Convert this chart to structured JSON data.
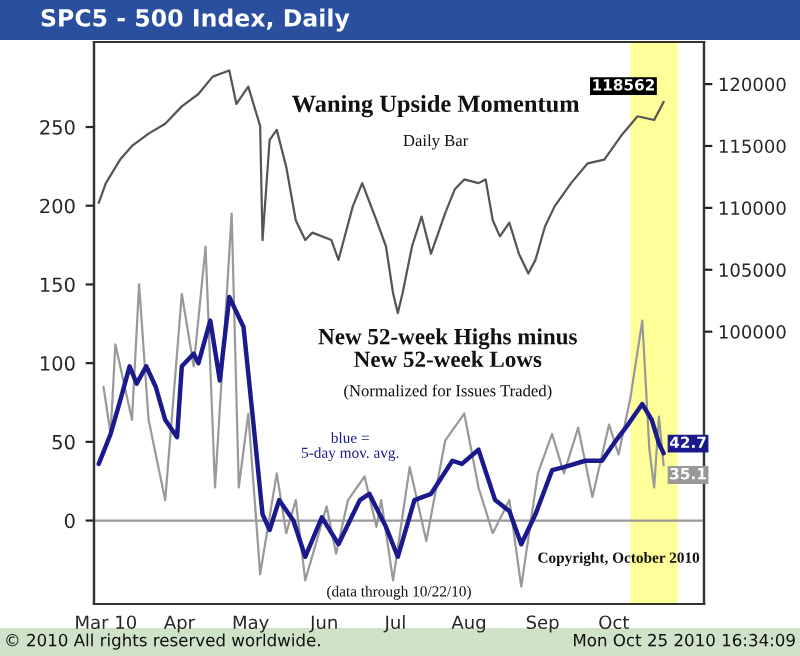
{
  "chart_data": {
    "type": "line",
    "title": "SPC5 - 500 Index, Daily",
    "annotations": [
      "Waning Upside Momentum",
      "Daily Bar",
      "New 52-week Highs minus\nNew 52-week Lows",
      "(Normalized for Issues Traded)",
      "blue =\n5-day mov. avg.",
      "(data through 10/22/10)",
      "Copyright, October 2010",
      "© 2010 All rights reserved worldwide.",
      "Mon Oct 25 2010 16:34:09"
    ],
    "series": [
      {
        "axis": "y2",
        "color": "#555555",
        "x": [
          "2010-02-26",
          "2010-03-01",
          "2010-03-07",
          "2010-03-12",
          "2010-03-19",
          "2010-03-26",
          "2010-04-02",
          "2010-04-09",
          "2010-04-15",
          "2010-04-22",
          "2010-04-25",
          "2010-04-30",
          "2010-05-05",
          "2010-05-06",
          "2010-05-09",
          "2010-05-12",
          "2010-05-16",
          "2010-05-20",
          "2010-05-24",
          "2010-05-27",
          "2010-06-04",
          "2010-06-07",
          "2010-06-13",
          "2010-06-17",
          "2010-06-23",
          "2010-06-27",
          "2010-06-30",
          "2010-07-02",
          "2010-07-04",
          "2010-07-08",
          "2010-07-12",
          "2010-07-16",
          "2010-07-22",
          "2010-07-26",
          "2010-07-30",
          "2010-08-05",
          "2010-08-08",
          "2010-08-11",
          "2010-08-14",
          "2010-08-18",
          "2010-08-22",
          "2010-08-26",
          "2010-08-29",
          "2010-09-02",
          "2010-09-06",
          "2010-09-13",
          "2010-09-20",
          "2010-09-27",
          "2010-10-04",
          "2010-10-11",
          "2010-10-18",
          "2010-10-22"
        ],
        "values": [
          110400,
          112000,
          113900,
          115000,
          116000,
          116800,
          118200,
          119200,
          120600,
          121100,
          118400,
          119800,
          116600,
          107400,
          115500,
          116300,
          113300,
          109000,
          107400,
          108000,
          107400,
          105800,
          110100,
          112000,
          109000,
          106900,
          103100,
          101500,
          103100,
          106900,
          109300,
          106300,
          109600,
          111500,
          112300,
          112000,
          112300,
          109000,
          107700,
          108800,
          106300,
          104700,
          105800,
          108500,
          110100,
          112000,
          113600,
          113900,
          115800,
          117400,
          117100,
          118562
        ],
        "value_labels": [
          null,
          null,
          null,
          null,
          null,
          null,
          null,
          null,
          null,
          null,
          null,
          null,
          null,
          null,
          null,
          null,
          null,
          null,
          null,
          null,
          null,
          null,
          null,
          null,
          null,
          null,
          null,
          null,
          null,
          null,
          null,
          null,
          null,
          null,
          null,
          null,
          null,
          null,
          null,
          null,
          null,
          null,
          null,
          null,
          null,
          null,
          null,
          null,
          null,
          null,
          null,
          "118562"
        ]
      },
      {
        "color": "#999999",
        "x": [
          "2010-02-28",
          "2010-03-03",
          "2010-03-05",
          "2010-03-12",
          "2010-03-15",
          "2010-03-19",
          "2010-03-26",
          "2010-04-02",
          "2010-04-07",
          "2010-04-12",
          "2010-04-16",
          "2010-04-23",
          "2010-04-26",
          "2010-04-30",
          "2010-05-05",
          "2010-05-12",
          "2010-05-16",
          "2010-05-20",
          "2010-05-24",
          "2010-06-02",
          "2010-06-06",
          "2010-06-11",
          "2010-06-18",
          "2010-06-23",
          "2010-06-25",
          "2010-06-30",
          "2010-07-07",
          "2010-07-14",
          "2010-07-22",
          "2010-07-30",
          "2010-08-05",
          "2010-08-11",
          "2010-08-18",
          "2010-08-23",
          "2010-08-30",
          "2010-09-05",
          "2010-09-10",
          "2010-09-16",
          "2010-09-22",
          "2010-09-29",
          "2010-10-03",
          "2010-10-08",
          "2010-10-13",
          "2010-10-16",
          "2010-10-18",
          "2010-10-20",
          "2010-10-22"
        ],
        "values": [
          85,
          55,
          112,
          64,
          150,
          64,
          13,
          144,
          98,
          174,
          21,
          195,
          21,
          68,
          -34,
          30,
          -8,
          13,
          -38,
          9,
          -21,
          13,
          28,
          -4,
          13,
          -38,
          34,
          -13,
          51,
          68,
          21,
          -8,
          13,
          -42,
          30,
          55,
          30,
          59,
          15,
          61,
          42,
          78,
          127,
          45,
          21,
          66,
          35.1
        ],
        "value_labels": [
          null,
          null,
          null,
          null,
          null,
          null,
          null,
          null,
          null,
          null,
          null,
          null,
          null,
          null,
          null,
          null,
          null,
          null,
          null,
          null,
          null,
          null,
          null,
          null,
          null,
          null,
          null,
          null,
          null,
          null,
          null,
          null,
          null,
          null,
          null,
          null,
          null,
          null,
          null,
          null,
          null,
          null,
          null,
          null,
          null,
          null,
          "35.1"
        ]
      },
      {
        "color": "#1a1a8c",
        "x": [
          "2010-02-26",
          "2010-03-03",
          "2010-03-07",
          "2010-03-11",
          "2010-03-14",
          "2010-03-18",
          "2010-03-22",
          "2010-03-26",
          "2010-03-31",
          "2010-04-02",
          "2010-04-07",
          "2010-04-09",
          "2010-04-14",
          "2010-04-18",
          "2010-04-22",
          "2010-04-28",
          "2010-05-02",
          "2010-05-06",
          "2010-05-09",
          "2010-05-13",
          "2010-05-19",
          "2010-05-24",
          "2010-05-31",
          "2010-06-07",
          "2010-06-16",
          "2010-06-20",
          "2010-06-27",
          "2010-07-02",
          "2010-07-09",
          "2010-07-16",
          "2010-07-25",
          "2010-07-29",
          "2010-08-05",
          "2010-08-12",
          "2010-08-18",
          "2010-08-23",
          "2010-08-29",
          "2010-09-05",
          "2010-09-10",
          "2010-09-19",
          "2010-09-26",
          "2010-10-01",
          "2010-10-07",
          "2010-10-13",
          "2010-10-17",
          "2010-10-20",
          "2010-10-22"
        ],
        "values": [
          36,
          55,
          76,
          98,
          87,
          98,
          85,
          64,
          53,
          98,
          106,
          100,
          127,
          89,
          142,
          123,
          64,
          4,
          -6,
          13,
          0,
          -23,
          2,
          -15,
          13,
          17,
          -4,
          -23,
          13,
          17,
          38,
          36,
          45,
          13,
          6,
          -15,
          4,
          32,
          34,
          38,
          38,
          49,
          61,
          74,
          64,
          49,
          42.7
        ],
        "value_labels": [
          null,
          null,
          null,
          null,
          null,
          null,
          null,
          null,
          null,
          null,
          null,
          null,
          null,
          null,
          null,
          null,
          null,
          null,
          null,
          null,
          null,
          null,
          null,
          null,
          null,
          null,
          null,
          null,
          null,
          null,
          null,
          null,
          null,
          null,
          null,
          null,
          null,
          null,
          null,
          null,
          null,
          null,
          null,
          null,
          null,
          null,
          "42.7"
        ]
      }
    ],
    "xlim": [
      "2010-02-24",
      "2010-11-08"
    ],
    "xticks": [
      {
        "value": "2010-03-01",
        "label": "Mar 10"
      },
      {
        "value": "2010-04-01",
        "label": "Apr"
      },
      {
        "value": "2010-05-01",
        "label": "May"
      },
      {
        "value": "2010-06-01",
        "label": "Jun"
      },
      {
        "value": "2010-07-01",
        "label": "Jul"
      },
      {
        "value": "2010-08-01",
        "label": "Aug"
      },
      {
        "value": "2010-09-01",
        "label": "Sep"
      },
      {
        "value": "2010-10-01",
        "label": "Oct"
      }
    ],
    "ylim": [
      -53,
      304
    ],
    "yticks": [
      0,
      50,
      100,
      150,
      200,
      250
    ],
    "y2lim": [
      78000,
      123400
    ],
    "y2ticks": [
      100000,
      105000,
      110000,
      115000,
      120000
    ],
    "ref_lines": [
      {
        "axis": "y",
        "value": 0,
        "color": "#999999"
      }
    ],
    "bands": [
      {
        "axis": "x",
        "from": "2010-10-08",
        "to": "2010-10-28",
        "color": "#ffff99"
      }
    ],
    "grid": false,
    "legend": false,
    "marker": "none",
    "line_style": "solid"
  }
}
